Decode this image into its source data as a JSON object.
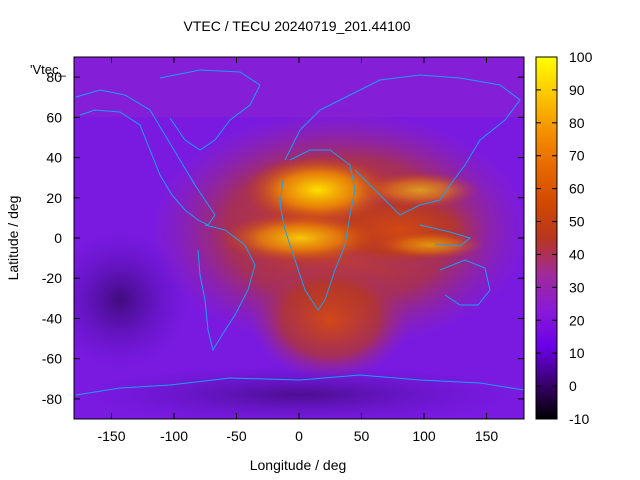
{
  "chart_data": {
    "type": "heatmap",
    "title": "VTEC / TECU 20240719_201.44100",
    "xlabel": "Longitude / deg",
    "ylabel": "Latitude / deg",
    "legend_label": "'Vtec_",
    "xlim": [
      -180,
      180
    ],
    "ylim": [
      -90,
      90
    ],
    "x_ticks": [
      -150,
      -100,
      -50,
      0,
      50,
      100,
      150
    ],
    "y_ticks": [
      -80,
      -60,
      -40,
      -20,
      0,
      20,
      40,
      60,
      80
    ],
    "colorbar": {
      "range": [
        -10,
        100
      ],
      "ticks": [
        -10,
        0,
        10,
        20,
        30,
        40,
        50,
        60,
        70,
        80,
        90,
        100
      ]
    },
    "grid": false,
    "overlay": "coastlines",
    "colors": {
      "coastline": "#1aa0f0"
    }
  }
}
